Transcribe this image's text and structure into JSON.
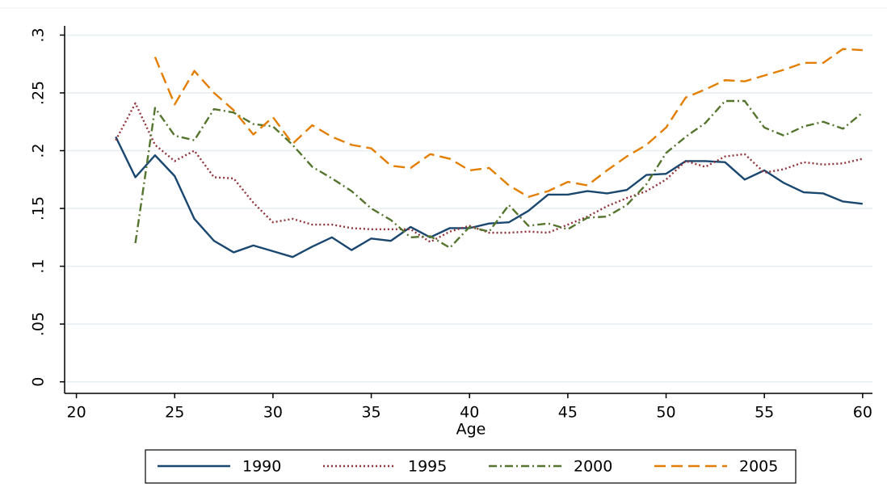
{
  "chart_data": {
    "type": "line",
    "x_label": "Age",
    "x": [
      22,
      23,
      24,
      25,
      26,
      27,
      28,
      29,
      30,
      31,
      32,
      33,
      34,
      35,
      36,
      37,
      38,
      39,
      40,
      41,
      42,
      43,
      44,
      45,
      46,
      47,
      48,
      49,
      50,
      51,
      52,
      53,
      54,
      55,
      56,
      57,
      58,
      59,
      60
    ],
    "series": [
      {
        "name": "1990",
        "color": "#1a476f",
        "dash": "solid",
        "values": [
          0.212,
          0.177,
          0.196,
          0.178,
          0.141,
          0.122,
          0.112,
          0.118,
          0.113,
          0.108,
          0.117,
          0.125,
          0.114,
          0.124,
          0.122,
          0.134,
          0.125,
          0.133,
          0.133,
          0.137,
          0.138,
          0.148,
          0.162,
          0.162,
          0.165,
          0.163,
          0.166,
          0.179,
          0.18,
          0.191,
          0.191,
          0.19,
          0.175,
          0.183,
          0.172,
          0.164,
          0.163,
          0.156,
          0.154
        ]
      },
      {
        "name": "1995",
        "color": "#90353b",
        "dash": "dotted",
        "values": [
          0.209,
          0.241,
          0.205,
          0.191,
          0.2,
          0.177,
          0.176,
          0.155,
          0.138,
          0.141,
          0.136,
          0.136,
          0.133,
          0.132,
          0.132,
          0.132,
          0.121,
          0.13,
          0.135,
          0.129,
          0.129,
          0.13,
          0.129,
          0.136,
          0.143,
          0.152,
          0.159,
          0.165,
          0.175,
          0.191,
          0.186,
          0.195,
          0.197,
          0.181,
          0.184,
          0.19,
          0.188,
          0.189,
          0.193
        ]
      },
      {
        "name": "2000",
        "color": "#55752f",
        "dash": "dashdot",
        "values": [
          null,
          0.12,
          0.237,
          0.213,
          0.209,
          0.236,
          0.233,
          0.223,
          0.221,
          0.205,
          0.186,
          0.176,
          0.165,
          0.15,
          0.14,
          0.125,
          0.126,
          0.116,
          0.134,
          0.13,
          0.153,
          0.135,
          0.137,
          0.132,
          0.142,
          0.143,
          0.153,
          0.171,
          0.198,
          0.212,
          0.224,
          0.243,
          0.243,
          0.22,
          0.213,
          0.221,
          0.225,
          0.219,
          0.233
        ]
      },
      {
        "name": "2005",
        "color": "#e37e00",
        "dash": "dashed",
        "values": [
          null,
          null,
          0.281,
          0.24,
          0.269,
          0.25,
          0.235,
          0.214,
          0.229,
          0.206,
          0.222,
          0.212,
          0.205,
          0.202,
          0.187,
          0.185,
          0.197,
          0.193,
          0.183,
          0.185,
          0.17,
          0.16,
          0.165,
          0.173,
          0.17,
          0.183,
          0.195,
          0.205,
          0.22,
          0.246,
          0.253,
          0.261,
          0.26,
          0.265,
          0.27,
          0.276,
          0.276,
          0.288,
          0.287
        ]
      }
    ],
    "xlim": [
      19.4,
      60.5
    ],
    "xticks": [
      20,
      25,
      30,
      35,
      40,
      45,
      50,
      55,
      60
    ],
    "ylim": [
      -0.01,
      0.308
    ],
    "yticks": [
      0,
      {
        "value": 0.05,
        "label": ".05"
      },
      {
        "value": 0.1,
        "label": ".1"
      },
      {
        "value": 0.15,
        "label": ".15"
      },
      {
        "value": 0.2,
        "label": ".2"
      },
      {
        "value": 0.25,
        "label": ".25"
      },
      {
        "value": 0.3,
        "label": ".3"
      }
    ],
    "grid": true
  }
}
